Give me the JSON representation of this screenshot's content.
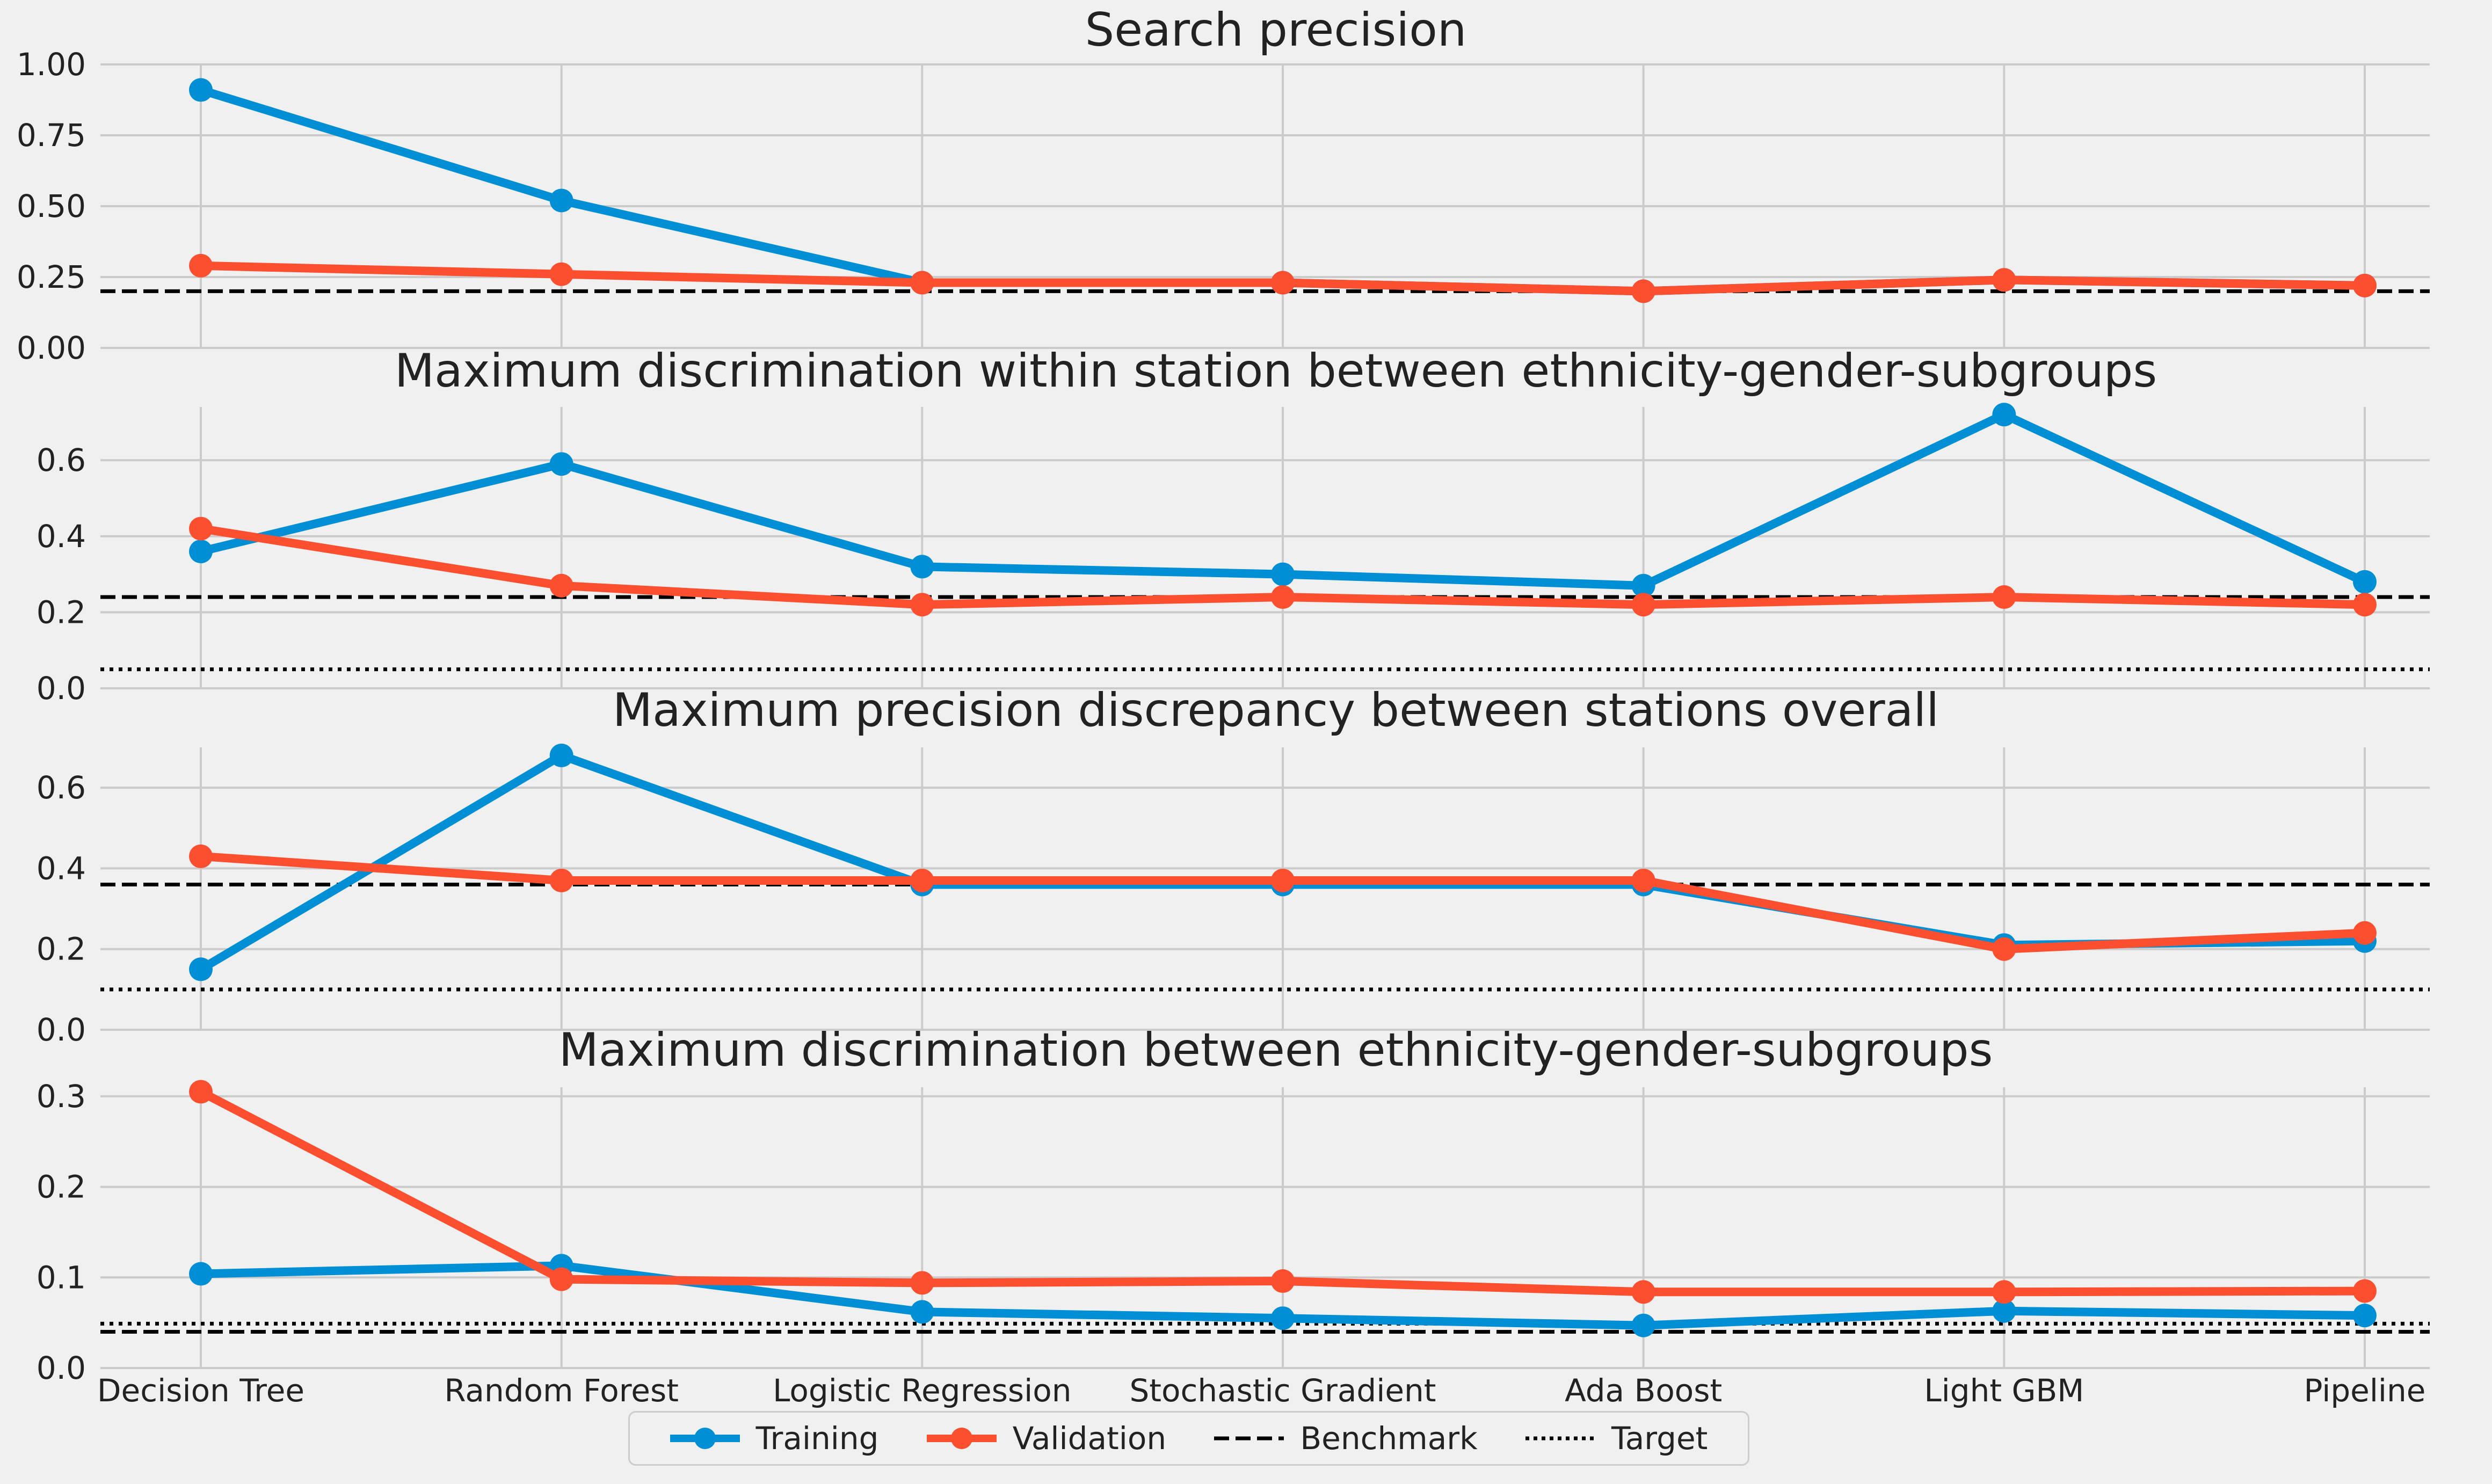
{
  "colors": {
    "training": "#008fd5",
    "validation": "#fc4f30",
    "reference": "#000000",
    "grid": "#cbcbcb",
    "background": "#f0f0f0"
  },
  "legend": {
    "training": "Training",
    "validation": "Validation",
    "benchmark": "Benchmark",
    "target": "Target"
  },
  "chart_data": [
    {
      "type": "line",
      "title": "Search precision",
      "categories": [
        "Decision Tree",
        "Random Forest",
        "Logistic Regression",
        "Stochastic Gradient",
        "Ada Boost",
        "Light GBM",
        "Pipeline"
      ],
      "ylim": [
        0,
        1.0
      ],
      "yticks": [
        "0.00",
        "0.25",
        "0.50",
        "0.75",
        "1.00"
      ],
      "series": [
        {
          "name": "Training",
          "values": [
            0.91,
            0.52,
            0.23,
            0.23,
            0.2,
            0.24,
            0.22
          ]
        },
        {
          "name": "Validation",
          "values": [
            0.29,
            0.26,
            0.23,
            0.23,
            0.2,
            0.24,
            0.22
          ]
        }
      ],
      "benchmark": 0.2,
      "target": null,
      "show_xticks": false
    },
    {
      "type": "line",
      "title": "Maximum discrimination within station between ethnicity-gender-subgroups",
      "categories": [
        "Decision Tree",
        "Random Forest",
        "Logistic Regression",
        "Stochastic Gradient",
        "Ada Boost",
        "Light GBM",
        "Pipeline"
      ],
      "ylim": [
        0,
        0.74
      ],
      "yticks": [
        "0.0",
        "0.2",
        "0.4",
        "0.6"
      ],
      "series": [
        {
          "name": "Training",
          "values": [
            0.36,
            0.59,
            0.32,
            0.3,
            0.27,
            0.72,
            0.28
          ]
        },
        {
          "name": "Validation",
          "values": [
            0.42,
            0.27,
            0.22,
            0.24,
            0.22,
            0.24,
            0.22
          ]
        }
      ],
      "benchmark": 0.24,
      "target": 0.05,
      "show_xticks": false
    },
    {
      "type": "line",
      "title": "Maximum precision discrepancy between stations overall",
      "categories": [
        "Decision Tree",
        "Random Forest",
        "Logistic Regression",
        "Stochastic Gradient",
        "Ada Boost",
        "Light GBM",
        "Pipeline"
      ],
      "ylim": [
        0,
        0.7
      ],
      "yticks": [
        "0.0",
        "0.2",
        "0.4",
        "0.6"
      ],
      "series": [
        {
          "name": "Training",
          "values": [
            0.15,
            0.68,
            0.36,
            0.36,
            0.36,
            0.21,
            0.22
          ]
        },
        {
          "name": "Validation",
          "values": [
            0.43,
            0.37,
            0.37,
            0.37,
            0.37,
            0.2,
            0.24
          ]
        }
      ],
      "benchmark": 0.36,
      "target": 0.1,
      "show_xticks": false
    },
    {
      "type": "line",
      "title": "Maximum discrimination between ethnicity-gender-subgroups",
      "categories": [
        "Decision Tree",
        "Random Forest",
        "Logistic Regression",
        "Stochastic Gradient",
        "Ada Boost",
        "Light GBM",
        "Pipeline"
      ],
      "ylim": [
        0,
        0.31
      ],
      "yticks": [
        "0.0",
        "0.1",
        "0.2",
        "0.3"
      ],
      "series": [
        {
          "name": "Training",
          "values": [
            0.104,
            0.113,
            0.062,
            0.055,
            0.047,
            0.063,
            0.058
          ]
        },
        {
          "name": "Validation",
          "values": [
            0.305,
            0.098,
            0.094,
            0.096,
            0.084,
            0.084,
            0.085
          ]
        }
      ],
      "benchmark": 0.04,
      "target": 0.049,
      "show_xticks": true
    }
  ]
}
